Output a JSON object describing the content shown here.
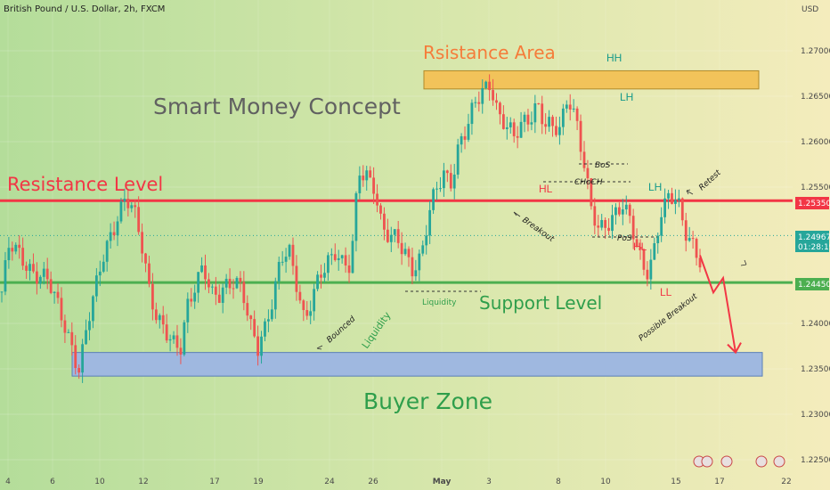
{
  "header": {
    "symbol": "British Pound / U.S. Dollar, 2h, FXCM",
    "currency": "USD"
  },
  "chart_data": {
    "type": "candlestick",
    "title": "Smart Money Concept",
    "ylim": [
      1.2225,
      1.2735
    ],
    "y_ticks": [
      "1.27000",
      "1.26500",
      "1.26000",
      "1.25500",
      "1.24000",
      "1.23500",
      "1.23000",
      "1.22500"
    ],
    "x_tick_labels": [
      "4",
      "6",
      "10",
      "12",
      "17",
      "19",
      "24",
      "26",
      "May",
      "3",
      "8",
      "10",
      "15",
      "17",
      "22"
    ],
    "price_series": [
      1.2435,
      1.2485,
      1.2475,
      1.2468,
      1.246,
      1.2455,
      1.2445,
      1.242,
      1.24,
      1.2378,
      1.2352,
      1.2398,
      1.243,
      1.247,
      1.2498,
      1.2524,
      1.254,
      1.252,
      1.2485,
      1.2438,
      1.2412,
      1.2397,
      1.2375,
      1.2365,
      1.242,
      1.2448,
      1.247,
      1.243,
      1.2425,
      1.2438,
      1.245,
      1.2445,
      1.24,
      1.2368,
      1.239,
      1.243,
      1.248,
      1.2485,
      1.244,
      1.2395,
      1.2425,
      1.246,
      1.2472,
      1.2478,
      1.2458,
      1.246,
      1.2572,
      1.2568,
      1.2552,
      1.25,
      1.249,
      1.2495,
      1.2482,
      1.2462,
      1.2468,
      1.2512,
      1.2548,
      1.2568,
      1.256,
      1.2598,
      1.261,
      1.264,
      1.2658,
      1.267,
      1.263,
      1.2615,
      1.26,
      1.262,
      1.263,
      1.2645,
      1.2618,
      1.261,
      1.2612,
      1.2655,
      1.263,
      1.258,
      1.252,
      1.2498,
      1.251,
      1.2525,
      1.2535,
      1.251,
      1.2475,
      1.2452,
      1.248,
      1.2528,
      1.2538,
      1.2532,
      1.25,
      1.249,
      1.2475
    ],
    "projection": [
      1.2475,
      1.2434,
      1.245,
      1.2368
    ],
    "current_price": {
      "value": "1.24967",
      "countdown": "01:28:19"
    },
    "levels": [
      {
        "name": "Resistance Level",
        "value": 1.2535,
        "label": "1.25350",
        "color": "#f23645"
      },
      {
        "name": "Support Level",
        "value": 1.2445,
        "label": "1.24450",
        "color": "#4caf50"
      }
    ],
    "zones": {
      "resistance_area": {
        "label": "Rsistance Area",
        "from": 1.2658,
        "to": 1.2678,
        "color": "#f2c35a"
      },
      "buyer_zone": {
        "label": "Buyer Zone",
        "from": 1.2342,
        "to": 1.2368,
        "color": "#9fb8e0"
      }
    },
    "annotations": {
      "hh": "HH",
      "lh1": "LH",
      "lh2": "LH",
      "hl1": "HL",
      "hl2": "HL",
      "ll": "LL",
      "bos": "BoS",
      "choch": "CHoCH",
      "pos": "PoS",
      "breakout": "Breakout",
      "retest": "Retest",
      "possible_breakout": "Possible Breakout",
      "bounced": "Bounced",
      "liquidity_v": "Liquidity",
      "liquidity_h": "Liquidity"
    },
    "colors": {
      "up": "#26a69a",
      "down": "#ef5350",
      "green_text": "#2e9e4b",
      "red_text": "#f23645",
      "teal_text": "#159a8a",
      "orange_text": "#f57c3a",
      "gray_text": "#616161"
    }
  }
}
